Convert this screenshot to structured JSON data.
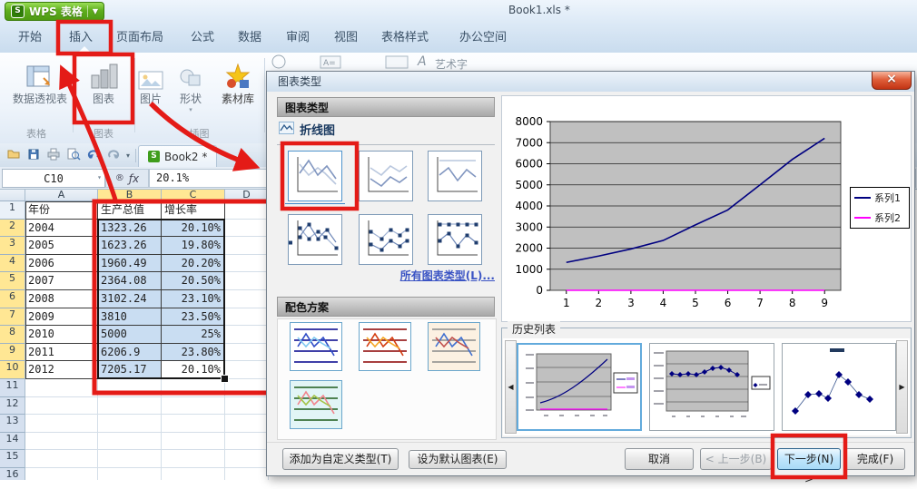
{
  "title_bar": {
    "logo": "S",
    "app_name": "WPS 表格",
    "document_title": "Book1.xls *"
  },
  "menu_tabs": [
    "开始",
    "插入",
    "页面布局",
    "公式",
    "数据",
    "审阅",
    "视图",
    "表格样式",
    "办公空间"
  ],
  "ribbon": {
    "buttons": [
      {
        "label": "数据透视表",
        "icon": "pivot-table-icon"
      },
      {
        "label": "图表",
        "icon": "chart-icon"
      },
      {
        "label": "图片",
        "icon": "picture-icon"
      },
      {
        "label": "形状",
        "icon": "shapes-icon"
      },
      {
        "label": "素材库",
        "icon": "clipart-icon"
      }
    ],
    "partial_label": "艺术字",
    "groups": [
      "表格",
      "图表",
      "插图"
    ]
  },
  "quick_toolbar": {
    "icons": [
      "open-icon",
      "save-icon",
      "print-icon",
      "print-preview-icon",
      "undo-icon",
      "redo-icon",
      "more-icon"
    ],
    "workbook_tab": "Book2 *"
  },
  "formula_bar": {
    "cell_ref": "C10",
    "value": "20.1%"
  },
  "spreadsheet": {
    "columns": [
      "A",
      "B",
      "C",
      "D"
    ],
    "rows": [
      {
        "n": 1,
        "a": "年份",
        "b": "生产总值",
        "c": "增长率"
      },
      {
        "n": 2,
        "a": "2004",
        "b": "1323.26",
        "c": "20.10%"
      },
      {
        "n": 3,
        "a": "2005",
        "b": "1623.26",
        "c": "19.80%"
      },
      {
        "n": 4,
        "a": "2006",
        "b": "1960.49",
        "c": "20.20%"
      },
      {
        "n": 5,
        "a": "2007",
        "b": "2364.08",
        "c": "20.50%"
      },
      {
        "n": 6,
        "a": "2008",
        "b": "3102.24",
        "c": "23.10%"
      },
      {
        "n": 7,
        "a": "2009",
        "b": "3810",
        "c": "23.50%"
      },
      {
        "n": 8,
        "a": "2010",
        "b": "5000",
        "c": "25%"
      },
      {
        "n": 9,
        "a": "2011",
        "b": "6206.9",
        "c": "23.80%"
      },
      {
        "n": 10,
        "a": "2012",
        "b": "7205.17",
        "c": "20.10%"
      }
    ],
    "empty_row_numbers": [
      11,
      12,
      13,
      14,
      15,
      16
    ],
    "selection": "B2:C10",
    "active_cell": "C10"
  },
  "dialog": {
    "title": "图表类型",
    "chart_type_header": "图表类型",
    "line_category": "折线图",
    "all_types_link": "所有图表类型(L)...",
    "color_scheme_header": "配色方案",
    "history_label": "历史列表",
    "buttons": {
      "add_custom": "添加为自定义类型(T)",
      "set_default": "设为默认图表(E)",
      "cancel": "取消",
      "prev": "< 上一步(B)",
      "next": "下一步(N) >",
      "finish": "完成(F)"
    }
  },
  "icons": {
    "close": "×",
    "dropdown": "▼",
    "small_down": "▾",
    "left": "◀",
    "right": "▶"
  },
  "colors": {
    "annotation_red": "#e41b17",
    "selection_fill": "#c9ddf2",
    "header_highlight": "#ffe794",
    "dialog_primary_button": "#a8dbf7"
  },
  "chart_data": {
    "type": "line",
    "x": [
      1,
      2,
      3,
      4,
      5,
      6,
      7,
      8,
      9
    ],
    "series": [
      {
        "name": "系列1",
        "color": "#000080",
        "values": [
          1323.26,
          1623.26,
          1960.49,
          2364.08,
          3102.24,
          3810,
          5000,
          6206.9,
          7205.17
        ]
      },
      {
        "name": "系列2",
        "color": "#ff00ff",
        "values": [
          0.201,
          0.198,
          0.202,
          0.205,
          0.231,
          0.235,
          0.25,
          0.238,
          0.201
        ]
      }
    ],
    "ylim": [
      0,
      8000
    ],
    "ytick_step": 1000,
    "plot_bg": "#c0c0c0",
    "grid": true,
    "legend_position": "right"
  }
}
